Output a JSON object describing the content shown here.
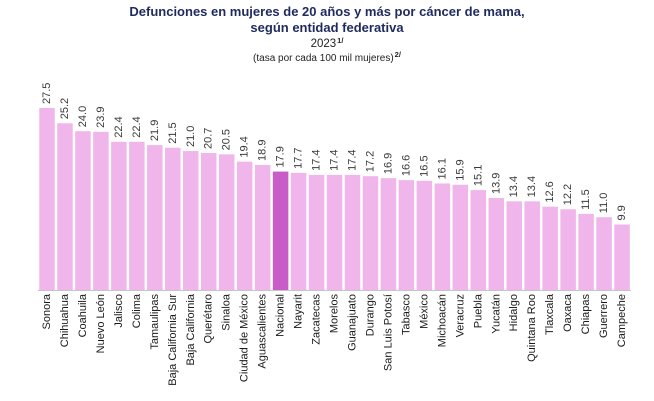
{
  "chart_data": {
    "type": "bar",
    "title": [
      "Defunciones en mujeres de 20 años y más por cáncer de mama,",
      "según entidad federativa"
    ],
    "subtitle": "2023",
    "subtitle_note": "1/",
    "unit": "(tasa por cada 100 mil mujeres)",
    "unit_note": "2/",
    "ylim": [
      0,
      30
    ],
    "grid": false,
    "categories": [
      "Sonora",
      "Chihuahua",
      "Coahuila",
      "Nuevo León",
      "Jalisco",
      "Colima",
      "Tamaulipas",
      "Baja California Sur",
      "Baja California",
      "Querétaro",
      "Sinaloa",
      "Ciudad de México",
      "Aguascalientes",
      "Nacional",
      "Nayarit",
      "Zacatecas",
      "Morelos",
      "Guanajuato",
      "Durango",
      "San Luis Potosí",
      "Tabasco",
      "México",
      "Michoacán",
      "Veracruz",
      "Puebla",
      "Yucatán",
      "Hidalgo",
      "Quintana Roo",
      "Tlaxcala",
      "Oaxaca",
      "Chiapas",
      "Guerrero",
      "Campeche"
    ],
    "values": [
      27.5,
      25.2,
      24.0,
      23.9,
      22.4,
      22.4,
      21.9,
      21.5,
      21.0,
      20.7,
      20.5,
      19.4,
      18.9,
      17.9,
      17.7,
      17.4,
      17.4,
      17.4,
      17.2,
      16.9,
      16.6,
      16.5,
      16.1,
      15.9,
      15.1,
      13.9,
      13.4,
      13.4,
      12.6,
      12.2,
      11.5,
      11.0,
      9.9
    ],
    "data_labels": [
      "27.5",
      "25.2",
      "24.0",
      "23.9",
      "22.4",
      "22.4",
      "21.9",
      "21.5",
      "21.0",
      "20.7",
      "20.5",
      "19.4",
      "18.9",
      "17.9",
      "17.7",
      "17.4",
      "17.4",
      "17.4",
      "17.2",
      "16.9",
      "16.6",
      "16.5",
      "16.1",
      "15.9",
      "15.1",
      "13.9",
      "13.4",
      "13.4",
      "12.6",
      "12.2",
      "11.5",
      "11.0",
      "9.9"
    ],
    "bar_colors": [
      "#F0B5EA",
      "#F0B5EA",
      "#F0B5EA",
      "#F0B5EA",
      "#F0B5EA",
      "#F0B5EA",
      "#F0B5EA",
      "#F0B5EA",
      "#F0B5EA",
      "#F0B5EA",
      "#F0B5EA",
      "#F0B5EA",
      "#F0B5EA",
      "#C95DC7",
      "#F0B5EA",
      "#F0B5EA",
      "#F0B5EA",
      "#F0B5EA",
      "#F0B5EA",
      "#F0B5EA",
      "#F0B5EA",
      "#F0B5EA",
      "#F0B5EA",
      "#F0B5EA",
      "#F0B5EA",
      "#F0B5EA",
      "#F0B5EA",
      "#F0B5EA",
      "#F0B5EA",
      "#F0B5EA",
      "#F0B5EA",
      "#F0B5EA",
      "#F0B5EA"
    ],
    "colors": {
      "title": "#1F2A5E",
      "baseline": "#C4C4C4"
    }
  }
}
